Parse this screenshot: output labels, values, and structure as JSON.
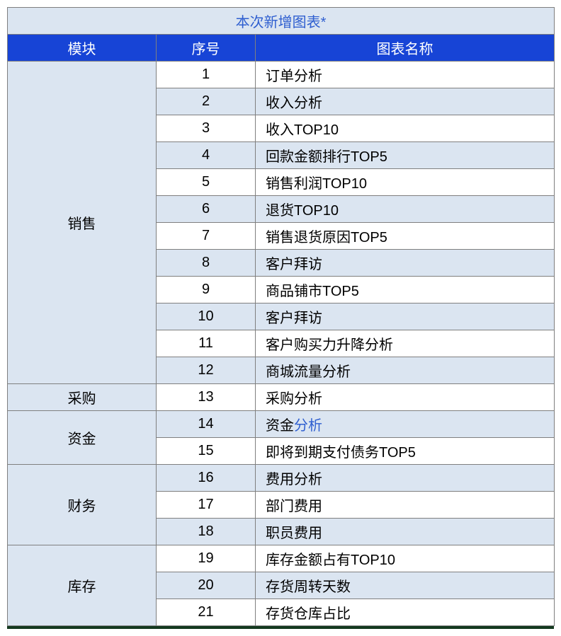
{
  "title": "本次新增图表*",
  "title_color": "#2f5fd0",
  "title_bg": "#dbe5f1",
  "header_bg": "#1744d6",
  "header_text_color": "#ffffff",
  "row_alt_bg": "#dbe5f1",
  "row_bg": "#ffffff",
  "border_color": "#7f7f7f",
  "bottom_bar_color": "#14391f",
  "link_color": "#2f5fd0",
  "columns": [
    "模块",
    "序号",
    "图表名称"
  ],
  "modules": [
    {
      "name": "销售",
      "rows": [
        {
          "idx": "1",
          "name": "订单分析"
        },
        {
          "idx": "2",
          "name": "收入分析"
        },
        {
          "idx": "3",
          "name": "收入TOP10"
        },
        {
          "idx": "4",
          "name": "回款金额排行TOP5"
        },
        {
          "idx": "5",
          "name": "销售利润TOP10"
        },
        {
          "idx": "6",
          "name": "退货TOP10"
        },
        {
          "idx": "7",
          "name": "销售退货原因TOP5"
        },
        {
          "idx": "8",
          "name": "客户拜访"
        },
        {
          "idx": "9",
          "name": "商品铺市TOP5"
        },
        {
          "idx": "10",
          "name": "客户拜访"
        },
        {
          "idx": "11",
          "name": "客户购买力升降分析"
        },
        {
          "idx": "12",
          "name": "商城流量分析"
        }
      ]
    },
    {
      "name": "采购",
      "rows": [
        {
          "idx": "13",
          "name": "采购分析"
        }
      ]
    },
    {
      "name": "资金",
      "rows": [
        {
          "idx": "14",
          "name_parts": [
            {
              "t": "资金",
              "c": "#000000"
            },
            {
              "t": "分析",
              "c": "#2f5fd0"
            }
          ]
        },
        {
          "idx": "15",
          "name": "即将到期支付债务TOP5"
        }
      ]
    },
    {
      "name": "财务",
      "rows": [
        {
          "idx": "16",
          "name": "费用分析"
        },
        {
          "idx": "17",
          "name": "部门费用"
        },
        {
          "idx": "18",
          "name": "职员费用"
        }
      ]
    },
    {
      "name": "库存",
      "rows": [
        {
          "idx": "19",
          "name": "库存金额占有TOP10"
        },
        {
          "idx": "20",
          "name": "存货周转天数"
        },
        {
          "idx": "21",
          "name": "存货仓库占比"
        }
      ]
    }
  ]
}
